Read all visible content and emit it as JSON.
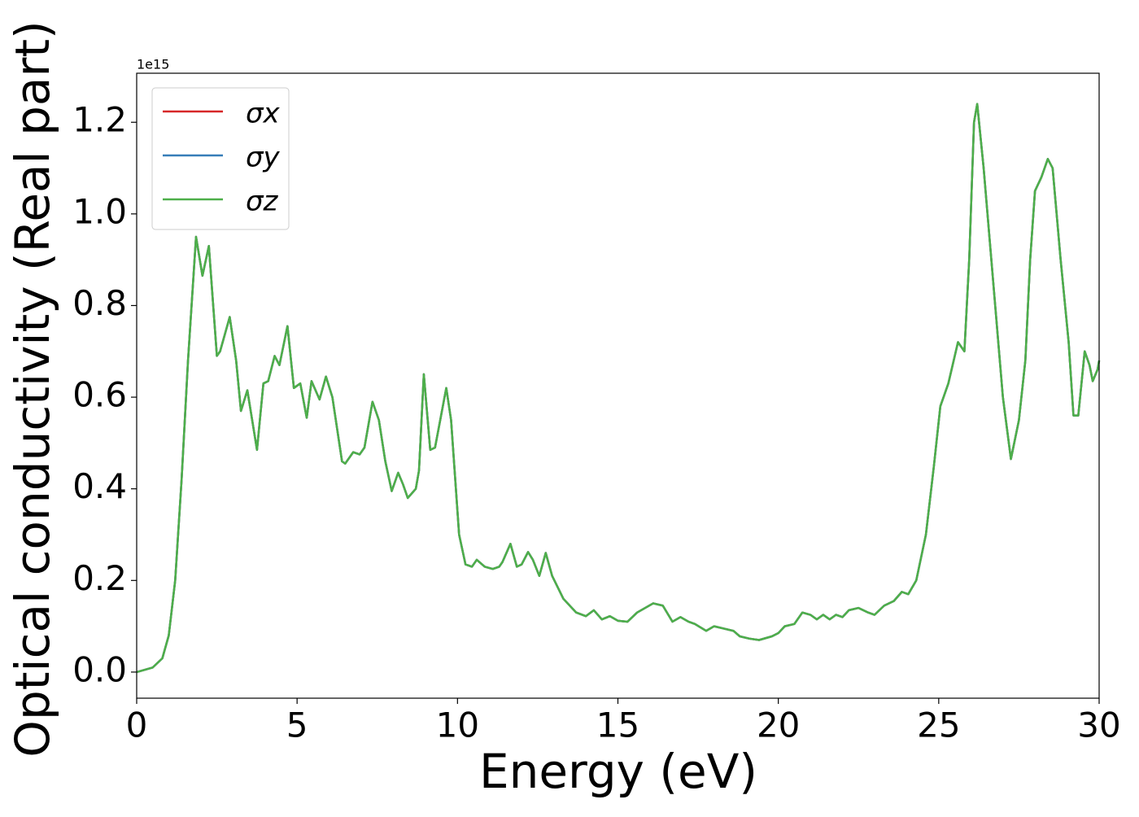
{
  "chart_data": {
    "type": "line",
    "xlabel": "Energy (eV)",
    "ylabel": "Optical conductivity (Real part)",
    "offset_text": "1e15",
    "xlim": [
      0,
      30
    ],
    "ylim": [
      -0.057,
      1.307
    ],
    "xticks": [
      0,
      5,
      10,
      15,
      20,
      25,
      30
    ],
    "yticks": [
      {
        "value": 0,
        "label": "0.0"
      },
      0.2,
      0.4,
      0.6,
      0.8,
      {
        "value": 1,
        "label": "1.0"
      },
      1.2
    ],
    "legend": "upper left",
    "x": [
      0,
      0.5,
      0.8,
      1.0,
      1.2,
      1.4,
      1.6,
      1.85,
      2.05,
      2.25,
      2.5,
      2.6,
      2.9,
      3.1,
      3.25,
      3.45,
      3.75,
      3.95,
      4.1,
      4.3,
      4.45,
      4.7,
      4.9,
      5.1,
      5.3,
      5.45,
      5.7,
      5.9,
      6.1,
      6.4,
      6.5,
      6.75,
      6.95,
      7.1,
      7.35,
      7.55,
      7.75,
      7.95,
      8.15,
      8.3,
      8.45,
      8.7,
      8.8,
      8.95,
      9.15,
      9.3,
      9.65,
      9.8,
      10.05,
      10.25,
      10.45,
      10.6,
      10.85,
      11.1,
      11.3,
      11.4,
      11.65,
      11.85,
      12.0,
      12.2,
      12.35,
      12.55,
      12.75,
      12.95,
      13.3,
      13.7,
      14.0,
      14.25,
      14.5,
      14.75,
      15.0,
      15.3,
      15.6,
      16.1,
      16.4,
      16.7,
      16.95,
      17.2,
      17.4,
      17.75,
      18.0,
      18.3,
      18.6,
      18.8,
      19.1,
      19.4,
      19.8,
      20.0,
      20.2,
      20.5,
      20.75,
      21.0,
      21.2,
      21.4,
      21.6,
      21.8,
      22.0,
      22.2,
      22.5,
      22.8,
      23.0,
      23.3,
      23.6,
      23.85,
      24.05,
      24.3,
      24.6,
      24.85,
      25.05,
      25.3,
      25.6,
      25.8,
      25.95,
      26.1,
      26.2,
      26.4,
      26.7,
      27.0,
      27.25,
      27.5,
      27.7,
      27.85,
      28.0,
      28.2,
      28.4,
      28.55,
      28.8,
      29.05,
      29.2,
      29.35,
      29.55,
      29.7,
      29.8,
      29.95,
      30.0
    ],
    "series": [
      {
        "name": "σx",
        "color": "#d62728",
        "values": [
          0,
          0.01,
          0.03,
          0.08,
          0.2,
          0.42,
          0.68,
          0.95,
          0.865,
          0.93,
          0.69,
          0.7,
          0.775,
          0.68,
          0.57,
          0.615,
          0.485,
          0.63,
          0.635,
          0.69,
          0.67,
          0.755,
          0.62,
          0.63,
          0.555,
          0.635,
          0.595,
          0.645,
          0.6,
          0.46,
          0.455,
          0.48,
          0.475,
          0.49,
          0.59,
          0.55,
          0.46,
          0.395,
          0.435,
          0.41,
          0.38,
          0.4,
          0.44,
          0.65,
          0.485,
          0.49,
          0.62,
          0.55,
          0.3,
          0.235,
          0.23,
          0.245,
          0.23,
          0.225,
          0.23,
          0.24,
          0.28,
          0.23,
          0.235,
          0.262,
          0.245,
          0.21,
          0.26,
          0.21,
          0.16,
          0.13,
          0.122,
          0.135,
          0.115,
          0.122,
          0.112,
          0.11,
          0.13,
          0.15,
          0.145,
          0.11,
          0.12,
          0.11,
          0.105,
          0.09,
          0.1,
          0.095,
          0.09,
          0.078,
          0.073,
          0.07,
          0.078,
          0.085,
          0.1,
          0.105,
          0.13,
          0.125,
          0.115,
          0.125,
          0.115,
          0.125,
          0.12,
          0.135,
          0.14,
          0.13,
          0.125,
          0.145,
          0.155,
          0.175,
          0.17,
          0.2,
          0.3,
          0.45,
          0.58,
          0.63,
          0.72,
          0.7,
          0.9,
          1.2,
          1.24,
          1.1,
          0.85,
          0.6,
          0.465,
          0.55,
          0.68,
          0.9,
          1.05,
          1.08,
          1.12,
          1.1,
          0.9,
          0.72,
          0.56,
          0.56,
          0.7,
          0.67,
          0.635,
          0.66,
          0.68
        ]
      },
      {
        "name": "σy",
        "color": "#377eb8",
        "values": [
          0,
          0.01,
          0.03,
          0.08,
          0.2,
          0.42,
          0.68,
          0.95,
          0.865,
          0.93,
          0.69,
          0.7,
          0.775,
          0.68,
          0.57,
          0.615,
          0.485,
          0.63,
          0.635,
          0.69,
          0.67,
          0.755,
          0.62,
          0.63,
          0.555,
          0.635,
          0.595,
          0.645,
          0.6,
          0.46,
          0.455,
          0.48,
          0.475,
          0.49,
          0.59,
          0.55,
          0.46,
          0.395,
          0.435,
          0.41,
          0.38,
          0.4,
          0.44,
          0.65,
          0.485,
          0.49,
          0.62,
          0.55,
          0.3,
          0.235,
          0.23,
          0.245,
          0.23,
          0.225,
          0.23,
          0.24,
          0.28,
          0.23,
          0.235,
          0.262,
          0.245,
          0.21,
          0.26,
          0.21,
          0.16,
          0.13,
          0.122,
          0.135,
          0.115,
          0.122,
          0.112,
          0.11,
          0.13,
          0.15,
          0.145,
          0.11,
          0.12,
          0.11,
          0.105,
          0.09,
          0.1,
          0.095,
          0.09,
          0.078,
          0.073,
          0.07,
          0.078,
          0.085,
          0.1,
          0.105,
          0.13,
          0.125,
          0.115,
          0.125,
          0.115,
          0.125,
          0.12,
          0.135,
          0.14,
          0.13,
          0.125,
          0.145,
          0.155,
          0.175,
          0.17,
          0.2,
          0.3,
          0.45,
          0.58,
          0.63,
          0.72,
          0.7,
          0.9,
          1.2,
          1.24,
          1.1,
          0.85,
          0.6,
          0.465,
          0.55,
          0.68,
          0.9,
          1.05,
          1.08,
          1.12,
          1.1,
          0.9,
          0.72,
          0.56,
          0.56,
          0.7,
          0.67,
          0.635,
          0.66,
          0.68
        ]
      },
      {
        "name": "σz",
        "color": "#4daf4a",
        "values": [
          0,
          0.01,
          0.03,
          0.08,
          0.2,
          0.42,
          0.68,
          0.95,
          0.865,
          0.93,
          0.69,
          0.7,
          0.775,
          0.68,
          0.57,
          0.615,
          0.485,
          0.63,
          0.635,
          0.69,
          0.67,
          0.755,
          0.62,
          0.63,
          0.555,
          0.635,
          0.595,
          0.645,
          0.6,
          0.46,
          0.455,
          0.48,
          0.475,
          0.49,
          0.59,
          0.55,
          0.46,
          0.395,
          0.435,
          0.41,
          0.38,
          0.4,
          0.44,
          0.65,
          0.485,
          0.49,
          0.62,
          0.55,
          0.3,
          0.235,
          0.23,
          0.245,
          0.23,
          0.225,
          0.23,
          0.24,
          0.28,
          0.23,
          0.235,
          0.262,
          0.245,
          0.21,
          0.26,
          0.21,
          0.16,
          0.13,
          0.122,
          0.135,
          0.115,
          0.122,
          0.112,
          0.11,
          0.13,
          0.15,
          0.145,
          0.11,
          0.12,
          0.11,
          0.105,
          0.09,
          0.1,
          0.095,
          0.09,
          0.078,
          0.073,
          0.07,
          0.078,
          0.085,
          0.1,
          0.105,
          0.13,
          0.125,
          0.115,
          0.125,
          0.115,
          0.125,
          0.12,
          0.135,
          0.14,
          0.13,
          0.125,
          0.145,
          0.155,
          0.175,
          0.17,
          0.2,
          0.3,
          0.45,
          0.58,
          0.63,
          0.72,
          0.7,
          0.9,
          1.2,
          1.24,
          1.1,
          0.85,
          0.6,
          0.465,
          0.55,
          0.68,
          0.9,
          1.05,
          1.08,
          1.12,
          1.1,
          0.9,
          0.72,
          0.56,
          0.56,
          0.7,
          0.67,
          0.635,
          0.66,
          0.68
        ]
      }
    ]
  }
}
